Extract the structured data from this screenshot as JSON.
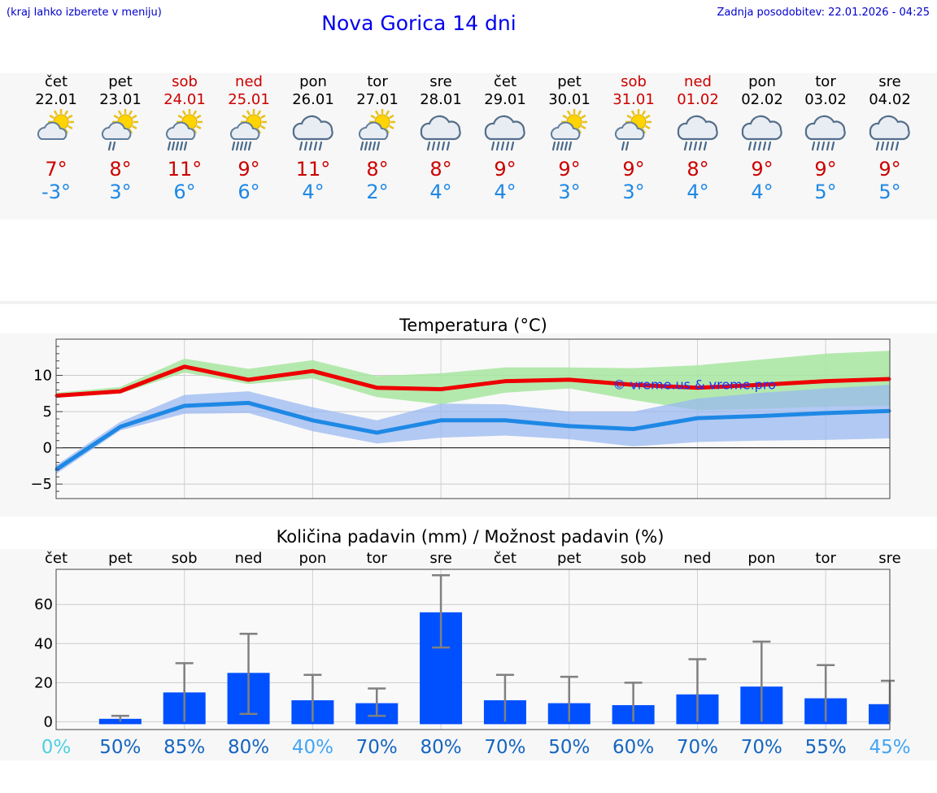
{
  "header": {
    "hint": "(kraj lahko izberete v meniju)",
    "title": "Nova Gorica 14 dni",
    "updated": "Zadnja posodobitev: 22.01.2026 - 04:25"
  },
  "forecast": [
    {
      "day": "čet",
      "date": "22.01",
      "weekend": false,
      "icon": "partly-cloudy-icon",
      "tmax": "7°",
      "tmin": "-3°"
    },
    {
      "day": "pet",
      "date": "23.01",
      "weekend": false,
      "icon": "sun-cloud-light-rain-icon",
      "tmax": "8°",
      "tmin": "3°"
    },
    {
      "day": "sob",
      "date": "24.01",
      "weekend": true,
      "icon": "sun-cloud-rain-icon",
      "tmax": "11°",
      "tmin": "6°"
    },
    {
      "day": "ned",
      "date": "25.01",
      "weekend": true,
      "icon": "sun-cloud-rain-icon",
      "tmax": "9°",
      "tmin": "6°"
    },
    {
      "day": "pon",
      "date": "26.01",
      "weekend": false,
      "icon": "cloud-rain-icon",
      "tmax": "11°",
      "tmin": "4°"
    },
    {
      "day": "tor",
      "date": "27.01",
      "weekend": false,
      "icon": "sun-cloud-rain-icon",
      "tmax": "8°",
      "tmin": "2°"
    },
    {
      "day": "sre",
      "date": "28.01",
      "weekend": false,
      "icon": "cloud-rain-icon",
      "tmax": "8°",
      "tmin": "4°"
    },
    {
      "day": "čet",
      "date": "29.01",
      "weekend": false,
      "icon": "cloud-rain-icon",
      "tmax": "9°",
      "tmin": "4°"
    },
    {
      "day": "pet",
      "date": "30.01",
      "weekend": false,
      "icon": "sun-cloud-rain-icon",
      "tmax": "9°",
      "tmin": "3°"
    },
    {
      "day": "sob",
      "date": "31.01",
      "weekend": true,
      "icon": "sun-cloud-light-rain-icon",
      "tmax": "9°",
      "tmin": "3°"
    },
    {
      "day": "ned",
      "date": "01.02",
      "weekend": true,
      "icon": "cloud-rain-icon",
      "tmax": "8°",
      "tmin": "4°"
    },
    {
      "day": "pon",
      "date": "02.02",
      "weekend": false,
      "icon": "cloud-rain-icon",
      "tmax": "9°",
      "tmin": "4°"
    },
    {
      "day": "tor",
      "date": "03.02",
      "weekend": false,
      "icon": "cloud-rain-icon",
      "tmax": "9°",
      "tmin": "5°"
    },
    {
      "day": "sre",
      "date": "04.02",
      "weekend": false,
      "icon": "cloud-rain-icon",
      "tmax": "9°",
      "tmin": "5°"
    }
  ],
  "colors": {
    "max_line": "#ee0000",
    "max_band": "#a8e6a0",
    "min_line": "#1e88e5",
    "min_band": "#9ab8f0",
    "bar": "#0050ff",
    "error": "#808080",
    "weekend": "#cc0000"
  },
  "chart_data": [
    {
      "type": "line",
      "title": "Temperatura (°C)",
      "watermark": "© vreme.us & vreme.pro",
      "ylim": [
        -7,
        15
      ],
      "yticks": [
        -5,
        0,
        5,
        10
      ],
      "ytick_labels": [
        "−5",
        "0",
        "5",
        "10"
      ],
      "x": [
        0,
        1,
        2,
        3,
        4,
        5,
        6,
        7,
        8,
        9,
        10,
        11,
        12,
        13
      ],
      "series": [
        {
          "name": "max",
          "values": [
            7.2,
            7.8,
            11.2,
            9.4,
            10.6,
            8.3,
            8.1,
            9.2,
            9.4,
            8.7,
            8.3,
            8.7,
            9.2,
            9.5
          ],
          "band_low": [
            6.9,
            7.5,
            10.4,
            8.8,
            9.6,
            7.0,
            6.0,
            7.6,
            8.2,
            6.6,
            5.2,
            5.4,
            5.7,
            5.8
          ],
          "band_high": [
            7.6,
            8.4,
            12.3,
            10.9,
            12.1,
            9.9,
            10.3,
            11.1,
            11.1,
            11.0,
            11.4,
            12.2,
            13.0,
            13.4
          ]
        },
        {
          "name": "min",
          "values": [
            -3.0,
            2.9,
            5.8,
            6.2,
            3.8,
            2.1,
            3.8,
            3.8,
            3.0,
            2.6,
            4.1,
            4.4,
            4.8,
            5.1
          ],
          "band_low": [
            -3.6,
            2.4,
            4.7,
            4.8,
            2.3,
            0.6,
            1.4,
            1.7,
            1.2,
            0.2,
            0.8,
            1.0,
            1.1,
            1.3
          ],
          "band_high": [
            -2.4,
            3.6,
            7.3,
            7.8,
            5.6,
            3.8,
            6.1,
            6.0,
            5.0,
            5.0,
            6.8,
            7.6,
            8.2,
            8.7
          ]
        }
      ]
    },
    {
      "type": "bar",
      "title": "Količina padavin (mm) / Možnost padavin (%)",
      "categories": [
        "čet",
        "pet",
        "sob",
        "ned",
        "pon",
        "tor",
        "sre",
        "čet",
        "pet",
        "sob",
        "ned",
        "pon",
        "tor",
        "sre"
      ],
      "values": [
        0,
        1.5,
        15,
        25,
        11,
        9.5,
        56,
        11,
        9.5,
        8.5,
        14,
        18,
        12,
        9
      ],
      "err_low": [
        0,
        0,
        0,
        4,
        0,
        3,
        38,
        0,
        0,
        0,
        0,
        0,
        0,
        0
      ],
      "err_high": [
        0,
        3,
        30,
        45,
        24,
        17,
        75,
        24,
        23,
        20,
        32,
        41,
        29,
        21
      ],
      "ylim": [
        -4,
        78
      ],
      "yticks": [
        0,
        20,
        40,
        60
      ],
      "probability": [
        "0%",
        "50%",
        "85%",
        "80%",
        "40%",
        "70%",
        "80%",
        "70%",
        "50%",
        "60%",
        "70%",
        "70%",
        "55%",
        "45%"
      ],
      "probability_colors": [
        "#4dd0e1",
        "#1565c0",
        "#1565c0",
        "#1565c0",
        "#42a5f5",
        "#1565c0",
        "#1565c0",
        "#1565c0",
        "#1565c0",
        "#1565c0",
        "#1565c0",
        "#1565c0",
        "#1565c0",
        "#42a5f5"
      ]
    }
  ]
}
